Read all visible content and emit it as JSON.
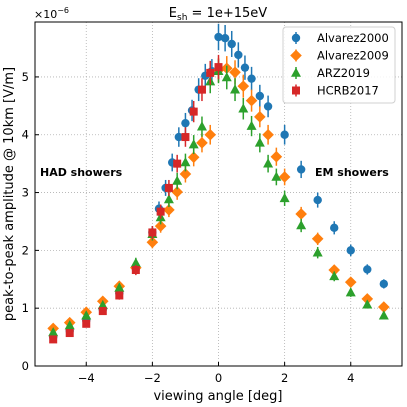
{
  "chart_data": {
    "type": "scatter",
    "title": "E_sh = 1e+15eV",
    "title_main": "E",
    "title_sub": "sh",
    "title_rest": " = 1e+15eV",
    "xlabel": "viewing angle [deg]",
    "ylabel": "peak-to-peak amplitude @ 10km [V/m]",
    "y_multiplier": "×10",
    "y_multiplier_exp": "−6",
    "xlim": [
      -5.55,
      5.55
    ],
    "ylim": [
      0,
      5.95
    ],
    "xticks": [
      -4,
      -2,
      0,
      2,
      4
    ],
    "xtick_labels": [
      "−4",
      "−2",
      "0",
      "2",
      "4"
    ],
    "yticks": [
      0,
      1,
      2,
      3,
      4,
      5
    ],
    "ytick_labels": [
      "0",
      "1",
      "2",
      "3",
      "4",
      "5"
    ],
    "grid": true,
    "legend_position": "top-right",
    "annotations": [
      {
        "text": "HAD showers"
      },
      {
        "text": "EM showers"
      }
    ],
    "series": [
      {
        "name": "Alvarez2000",
        "color": "#1f77b4",
        "marker": "circle",
        "x": [
          -5.0,
          -4.5,
          -4.0,
          -3.5,
          -3.0,
          -2.5,
          -2.0,
          -1.8,
          -1.6,
          -1.4,
          -1.2,
          -1.0,
          -0.8,
          -0.6,
          -0.4,
          -0.2,
          0.0,
          0.2,
          0.4,
          0.6,
          0.8,
          1.0,
          1.25,
          1.5,
          2.0,
          2.5,
          3.0,
          3.5,
          4.0,
          4.5,
          5.0
        ],
        "y": [
          0.5,
          0.61,
          0.79,
          0.98,
          1.26,
          1.68,
          2.31,
          2.72,
          3.08,
          3.52,
          3.96,
          4.2,
          4.42,
          4.78,
          5.02,
          5.1,
          5.69,
          5.67,
          5.57,
          5.38,
          5.16,
          4.97,
          4.67,
          4.49,
          4.0,
          3.4,
          2.87,
          2.39,
          2.0,
          1.67,
          1.42
        ]
      },
      {
        "name": "Alvarez2009",
        "color": "#ff7f0e",
        "marker": "diamond",
        "x": [
          -5.0,
          -4.5,
          -4.0,
          -3.5,
          -3.0,
          -2.5,
          -2.0,
          -1.75,
          -1.5,
          -1.25,
          -1.0,
          -0.75,
          -0.5,
          -0.25,
          0.0,
          0.25,
          0.5,
          0.75,
          1.0,
          1.25,
          1.5,
          1.75,
          2.0,
          2.5,
          3.0,
          3.5,
          4.0,
          4.5,
          5.0
        ],
        "y": [
          0.65,
          0.75,
          0.93,
          1.12,
          1.38,
          1.7,
          2.14,
          2.42,
          2.7,
          3.01,
          3.32,
          3.61,
          3.86,
          4.0,
          5.12,
          5.15,
          5.08,
          4.84,
          4.59,
          4.31,
          4.0,
          3.62,
          3.27,
          2.63,
          2.2,
          1.66,
          1.45,
          1.16,
          1.02
        ]
      },
      {
        "name": "ARZ2019",
        "color": "#2ca02c",
        "marker": "triangle",
        "x": [
          -5.0,
          -4.5,
          -4.0,
          -3.5,
          -3.0,
          -2.5,
          -2.0,
          -1.75,
          -1.5,
          -1.25,
          -1.0,
          -0.75,
          -0.5,
          -0.25,
          0.0,
          0.25,
          0.5,
          0.75,
          1.0,
          1.25,
          1.5,
          1.75,
          2.0,
          2.5,
          3.0,
          3.5,
          4.0,
          4.5,
          5.0
        ],
        "y": [
          0.58,
          0.7,
          0.87,
          1.05,
          1.35,
          1.78,
          2.28,
          2.57,
          2.88,
          3.2,
          3.52,
          3.83,
          4.14,
          4.92,
          5.1,
          4.99,
          4.78,
          4.45,
          4.15,
          3.86,
          3.5,
          3.27,
          2.9,
          2.43,
          1.96,
          1.55,
          1.27,
          1.06,
          0.87
        ]
      },
      {
        "name": "HCRB2017",
        "color": "#d62728",
        "marker": "square",
        "x": [
          -5.0,
          -4.5,
          -4.0,
          -3.5,
          -3.0,
          -2.5,
          -2.0,
          -1.75,
          -1.5,
          -1.25,
          -1.0,
          -0.75,
          -0.5,
          -0.25,
          0.0
        ],
        "y": [
          0.46,
          0.57,
          0.73,
          0.95,
          1.22,
          1.66,
          2.31,
          2.67,
          3.08,
          3.5,
          3.96,
          4.4,
          4.78,
          5.07,
          5.17
        ]
      }
    ]
  }
}
